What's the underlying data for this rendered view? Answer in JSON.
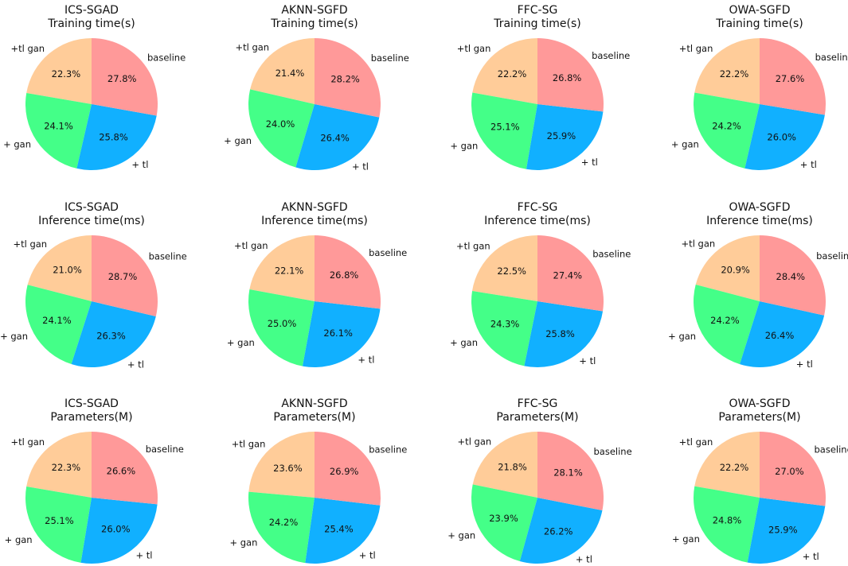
{
  "chart_data": [
    {
      "type": "pie",
      "title_line1": "ICS-SGAD",
      "title_line2": "Training time(s)",
      "labels": [
        "+tl gan",
        "+ gan",
        "+ tl",
        "baseline"
      ],
      "values": [
        22.3,
        24.1,
        25.8,
        27.8
      ],
      "value_labels": [
        "22.3%",
        "24.1%",
        "25.8%",
        "27.8%"
      ],
      "colors": [
        "#ffcc99",
        "#44ff88",
        "#11b0ff",
        "#ff9999"
      ]
    },
    {
      "type": "pie",
      "title_line1": "AKNN-SGFD",
      "title_line2": "Training time(s)",
      "labels": [
        "+tl gan",
        "+ gan",
        "+ tl",
        "baseline"
      ],
      "values": [
        21.4,
        24.0,
        26.4,
        28.2
      ],
      "value_labels": [
        "21.4%",
        "24.0%",
        "26.4%",
        "28.2%"
      ],
      "colors": [
        "#ffcc99",
        "#44ff88",
        "#11b0ff",
        "#ff9999"
      ]
    },
    {
      "type": "pie",
      "title_line1": "FFC-SG",
      "title_line2": "Training time(s)",
      "labels": [
        "+tl gan",
        "+ gan",
        "+ tl",
        "baseline"
      ],
      "values": [
        22.2,
        25.1,
        25.9,
        26.8
      ],
      "value_labels": [
        "22.2%",
        "25.1%",
        "25.9%",
        "26.8%"
      ],
      "colors": [
        "#ffcc99",
        "#44ff88",
        "#11b0ff",
        "#ff9999"
      ]
    },
    {
      "type": "pie",
      "title_line1": "OWA-SGFD",
      "title_line2": "Training time(s)",
      "labels": [
        "+tl gan",
        "+ gan",
        "+ tl",
        "baseline"
      ],
      "values": [
        22.2,
        24.2,
        26.0,
        27.6
      ],
      "value_labels": [
        "22.2%",
        "24.2%",
        "26.0%",
        "27.6%"
      ],
      "colors": [
        "#ffcc99",
        "#44ff88",
        "#11b0ff",
        "#ff9999"
      ]
    },
    {
      "type": "pie",
      "title_line1": "ICS-SGAD",
      "title_line2": "Inference time(ms)",
      "labels": [
        "+tl gan",
        "+ gan",
        "+ tl",
        "baseline"
      ],
      "values": [
        21.0,
        24.1,
        26.3,
        28.7
      ],
      "value_labels": [
        "21.0%",
        "24.1%",
        "26.3%",
        "28.7%"
      ],
      "colors": [
        "#ffcc99",
        "#44ff88",
        "#11b0ff",
        "#ff9999"
      ]
    },
    {
      "type": "pie",
      "title_line1": "AKNN-SGFD",
      "title_line2": "Inference time(ms)",
      "labels": [
        "+tl gan",
        "+ gan",
        "+ tl",
        "baseline"
      ],
      "values": [
        22.1,
        25.0,
        26.1,
        26.8
      ],
      "value_labels": [
        "22.1%",
        "25.0%",
        "26.1%",
        "26.8%"
      ],
      "colors": [
        "#ffcc99",
        "#44ff88",
        "#11b0ff",
        "#ff9999"
      ]
    },
    {
      "type": "pie",
      "title_line1": "FFC-SG",
      "title_line2": "Inference time(ms)",
      "labels": [
        "+tl gan",
        "+ gan",
        "+ tl",
        "baseline"
      ],
      "values": [
        22.5,
        24.3,
        25.8,
        27.4
      ],
      "value_labels": [
        "22.5%",
        "24.3%",
        "25.8%",
        "27.4%"
      ],
      "colors": [
        "#ffcc99",
        "#44ff88",
        "#11b0ff",
        "#ff9999"
      ]
    },
    {
      "type": "pie",
      "title_line1": "OWA-SGFD",
      "title_line2": "Inference time(ms)",
      "labels": [
        "+tl gan",
        "+ gan",
        "+ tl",
        "baseline"
      ],
      "values": [
        20.9,
        24.2,
        26.4,
        28.4
      ],
      "value_labels": [
        "20.9%",
        "24.2%",
        "26.4%",
        "28.4%"
      ],
      "colors": [
        "#ffcc99",
        "#44ff88",
        "#11b0ff",
        "#ff9999"
      ]
    },
    {
      "type": "pie",
      "title_line1": "ICS-SGAD",
      "title_line2": "Parameters(M)",
      "labels": [
        "+tl gan",
        "+ gan",
        "+ tl",
        "baseline"
      ],
      "values": [
        22.3,
        25.1,
        26.0,
        26.6
      ],
      "value_labels": [
        "22.3%",
        "25.1%",
        "26.0%",
        "26.6%"
      ],
      "colors": [
        "#ffcc99",
        "#44ff88",
        "#11b0ff",
        "#ff9999"
      ]
    },
    {
      "type": "pie",
      "title_line1": "AKNN-SGFD",
      "title_line2": "Parameters(M)",
      "labels": [
        "+tl gan",
        "+ gan",
        "+ tl",
        "baseline"
      ],
      "values": [
        23.6,
        24.2,
        25.4,
        26.9
      ],
      "value_labels": [
        "23.6%",
        "24.2%",
        "25.4%",
        "26.9%"
      ],
      "colors": [
        "#ffcc99",
        "#44ff88",
        "#11b0ff",
        "#ff9999"
      ]
    },
    {
      "type": "pie",
      "title_line1": "FFC-SG",
      "title_line2": "Parameters(M)",
      "labels": [
        "+tl gan",
        "+ gan",
        "+ tl",
        "baseline"
      ],
      "values": [
        21.8,
        23.9,
        26.2,
        28.1
      ],
      "value_labels": [
        "21.8%",
        "23.9%",
        "26.2%",
        "28.1%"
      ],
      "colors": [
        "#ffcc99",
        "#44ff88",
        "#11b0ff",
        "#ff9999"
      ]
    },
    {
      "type": "pie",
      "title_line1": "OWA-SGFD",
      "title_line2": "Parameters(M)",
      "labels": [
        "+tl gan",
        "+ gan",
        "+ tl",
        "baseline"
      ],
      "values": [
        22.2,
        24.8,
        25.9,
        27.0
      ],
      "value_labels": [
        "22.2%",
        "24.8%",
        "25.9%",
        "27.0%"
      ],
      "colors": [
        "#ffcc99",
        "#44ff88",
        "#11b0ff",
        "#ff9999"
      ]
    }
  ]
}
